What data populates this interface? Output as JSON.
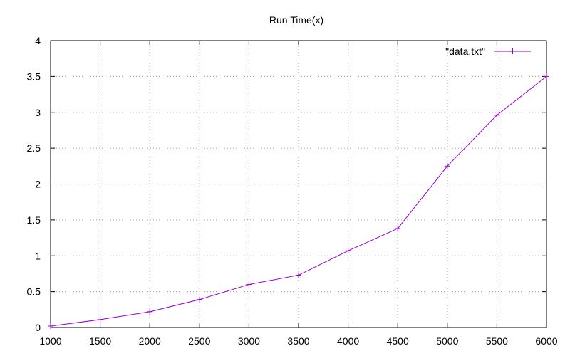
{
  "chart_data": {
    "type": "line",
    "title": "Run Time(x)",
    "xlabel": "",
    "ylabel": "",
    "x": [
      1000,
      1500,
      2000,
      2500,
      3000,
      3500,
      4000,
      4500,
      5000,
      5500,
      6000
    ],
    "series": [
      {
        "name": "\"data.txt\"",
        "color": "#9400d3",
        "values": [
          0.02,
          0.11,
          0.22,
          0.39,
          0.6,
          0.73,
          1.07,
          1.38,
          2.25,
          2.96,
          3.5
        ]
      }
    ],
    "xlim": [
      1000,
      6000
    ],
    "ylim": [
      0,
      4
    ],
    "xticks": [
      1000,
      1500,
      2000,
      2500,
      3000,
      3500,
      4000,
      4500,
      5000,
      5500,
      6000
    ],
    "yticks": [
      0,
      0.5,
      1,
      1.5,
      2,
      2.5,
      3,
      3.5,
      4
    ],
    "grid": true,
    "legend": "top-right",
    "marker": "plus"
  }
}
